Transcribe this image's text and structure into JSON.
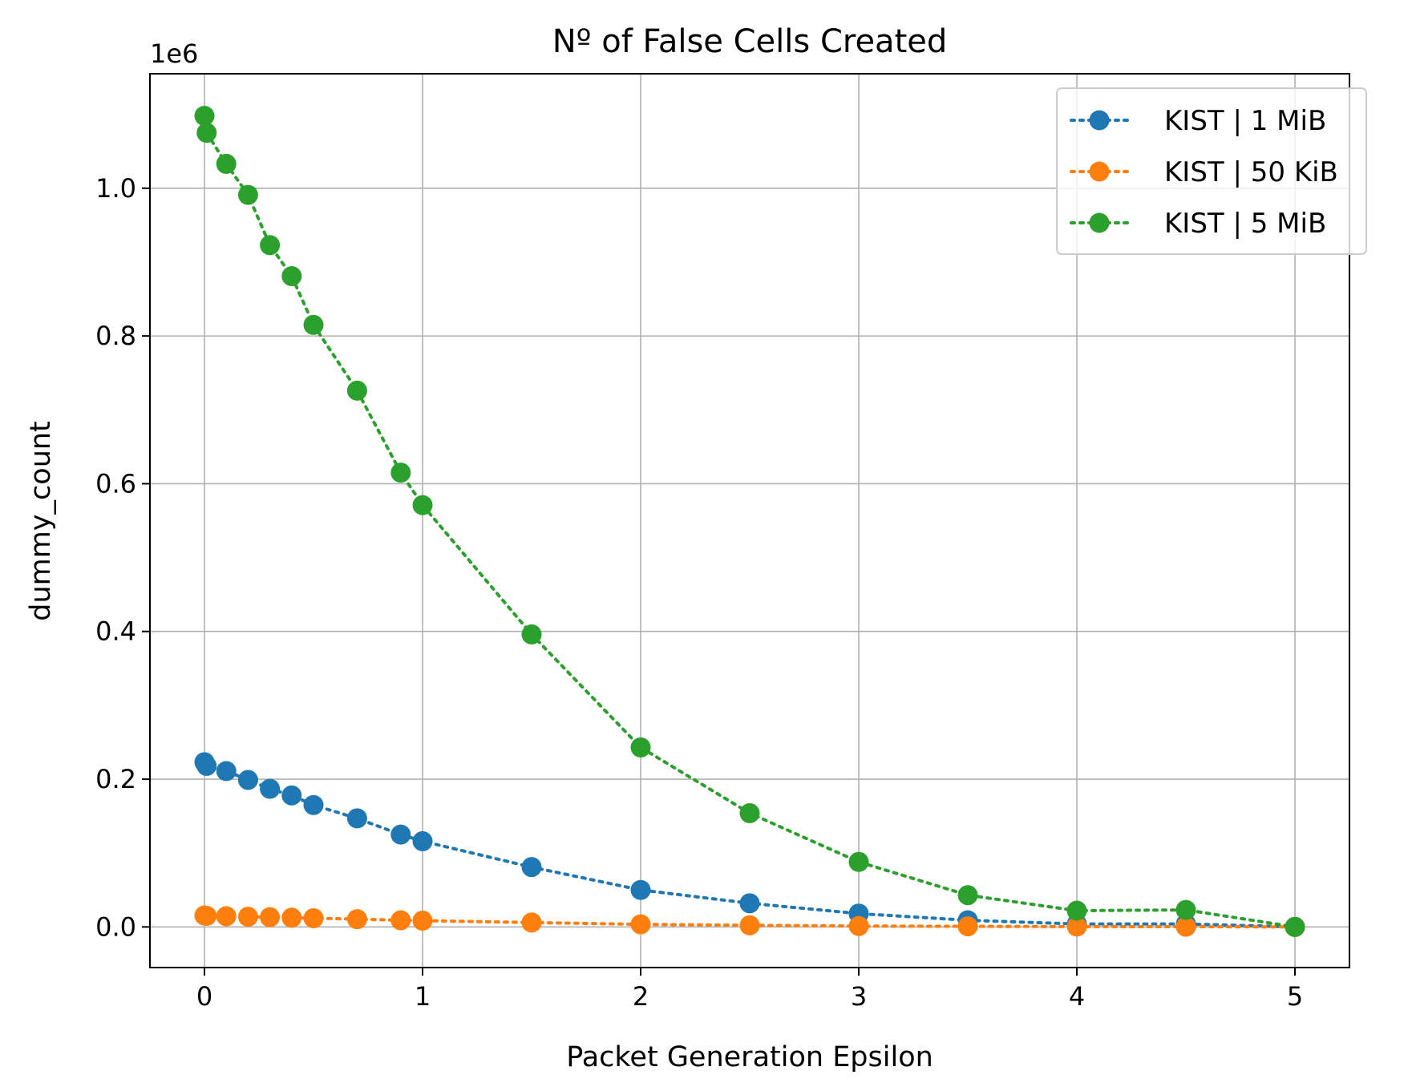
{
  "chart_data": {
    "type": "line",
    "title": "Nº of False Cells Created",
    "xlabel": "Packet Generation Epsilon",
    "ylabel": "dummy_count",
    "y_offset_label": "1e6",
    "xlim": [
      -0.25,
      5.25
    ],
    "ylim": [
      -0.055,
      1.155
    ],
    "xticks": [
      0,
      1,
      2,
      3,
      4,
      5
    ],
    "xtick_labels": [
      "0",
      "1",
      "2",
      "3",
      "4",
      "5"
    ],
    "yticks": [
      0.0,
      0.2,
      0.4,
      0.6,
      0.8,
      1.0
    ],
    "ytick_labels": [
      "0.0",
      "0.2",
      "0.4",
      "0.6",
      "0.8",
      "1.0"
    ],
    "grid": true,
    "legend_position": "top-right",
    "line_style": "dotted",
    "marker": "circle",
    "x": [
      0,
      0.01,
      0.1,
      0.2,
      0.3,
      0.4,
      0.5,
      0.7,
      0.9,
      1.0,
      1.5,
      2.0,
      2.5,
      3.0,
      3.5,
      4.0,
      4.5,
      5.0
    ],
    "series": [
      {
        "name": "KIST | 1 MiB",
        "color": "#1f77b4",
        "values": [
          0.223,
          0.218,
          0.211,
          0.199,
          0.187,
          0.178,
          0.165,
          0.147,
          0.125,
          0.116,
          0.081,
          0.05,
          0.032,
          0.018,
          0.009,
          0.004,
          0.004,
          0.0
        ]
      },
      {
        "name": "KIST | 50 KiB",
        "color": "#ff7f0e",
        "values": [
          0.0155,
          0.015,
          0.0145,
          0.0138,
          0.0132,
          0.0125,
          0.0118,
          0.0105,
          0.009,
          0.0085,
          0.006,
          0.0035,
          0.0022,
          0.0012,
          0.0008,
          0.0005,
          0.0003,
          0.0
        ]
      },
      {
        "name": "KIST | 5 MiB",
        "color": "#2ca02c",
        "values": [
          1.098,
          1.075,
          1.033,
          0.991,
          0.923,
          0.881,
          0.815,
          0.726,
          0.615,
          0.571,
          0.396,
          0.243,
          0.154,
          0.088,
          0.043,
          0.022,
          0.023,
          0.0
        ]
      }
    ]
  }
}
